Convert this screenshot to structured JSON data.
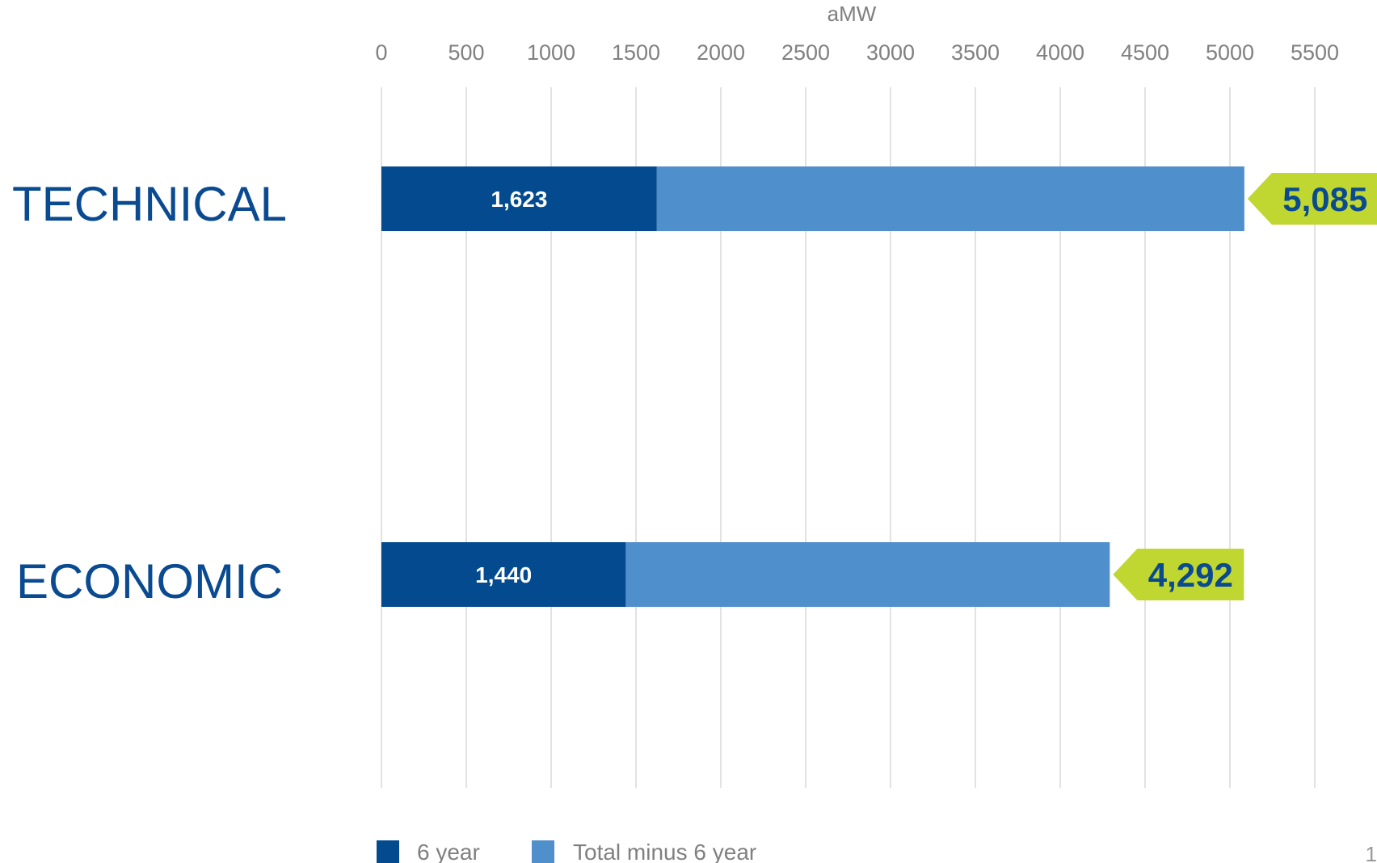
{
  "chart_data": {
    "type": "bar",
    "orientation": "horizontal",
    "stacked": true,
    "title": "",
    "xlabel": "aMW",
    "ylabel": "",
    "xlim": [
      0,
      5500
    ],
    "xticks": [
      0,
      500,
      1000,
      1500,
      2000,
      2500,
      3000,
      3500,
      4000,
      4500,
      5000,
      5500
    ],
    "categories": [
      "TECHNICAL",
      "ECONOMIC"
    ],
    "series": [
      {
        "name": "6 year",
        "values": [
          1623,
          1440
        ],
        "labels": [
          "1,623",
          "1,440"
        ],
        "color": "#034a8f"
      },
      {
        "name": "Total minus 6 year",
        "values": [
          3462,
          2852
        ],
        "color": "#4f8fcc"
      }
    ],
    "totals": [
      5085,
      4292
    ],
    "total_labels": [
      "5,085",
      "4,292"
    ],
    "total_callout_color": "#c1d731",
    "grid": true,
    "grid_color": "#d9d9d9",
    "legend_position": "bottom",
    "page_number": "1"
  }
}
